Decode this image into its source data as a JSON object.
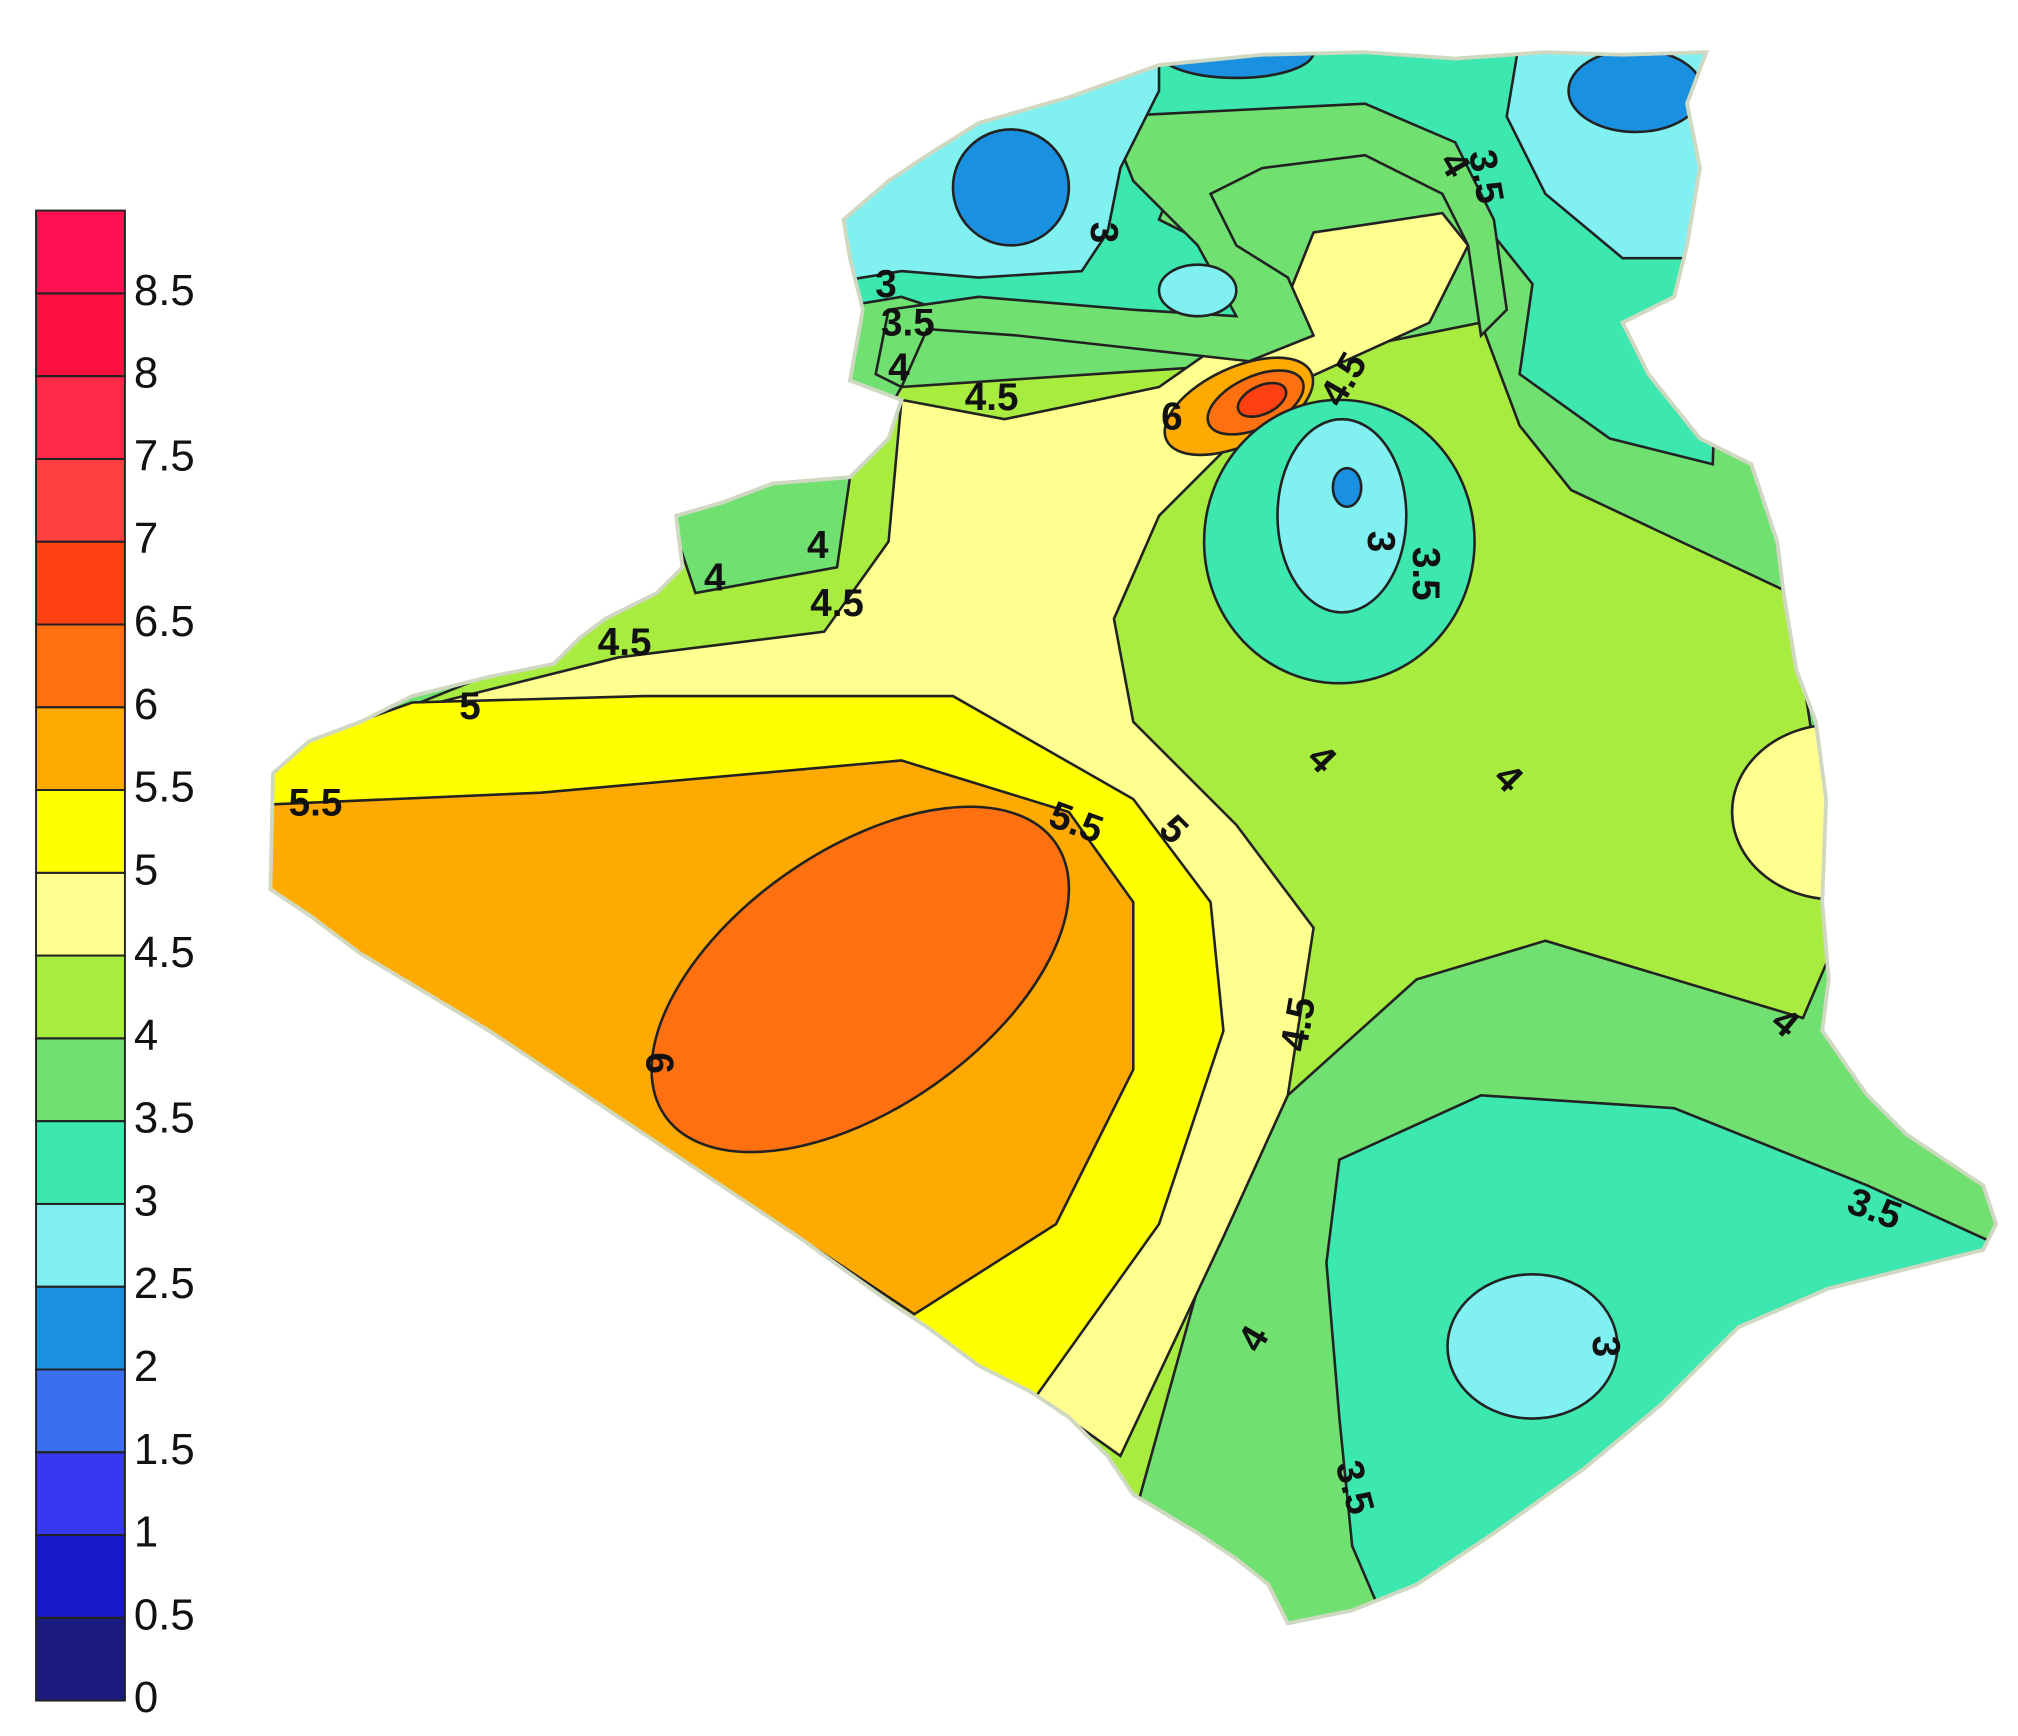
{
  "colorbar": {
    "range": [
      0,
      9
    ],
    "ticks": [
      0,
      0.5,
      1,
      1.5,
      2,
      2.5,
      3,
      3.5,
      4,
      4.5,
      5,
      5.5,
      6,
      6.5,
      7,
      7.5,
      8,
      8.5
    ],
    "colors": [
      "#1a1a80",
      "#1818c8",
      "#3838f0",
      "#3a70f0",
      "#1a90e0",
      "#80f0f0",
      "#3ce8b0",
      "#70e070",
      "#a8ec40",
      "#ffff90",
      "#ffff00",
      "#ffaa00",
      "#ff7010",
      "#ff4010",
      "#ff4040",
      "#ff2848",
      "#ff1040",
      "#ff1050"
    ]
  },
  "contour_labels": [
    3,
    3,
    3.5,
    4,
    4.5,
    6,
    4.5,
    4,
    3.5,
    3,
    3.5,
    4,
    4,
    4.5,
    4.5,
    5,
    5.5,
    5.5,
    5,
    6,
    4.5,
    4,
    4,
    4,
    3.5,
    3,
    4,
    3.5
  ]
}
